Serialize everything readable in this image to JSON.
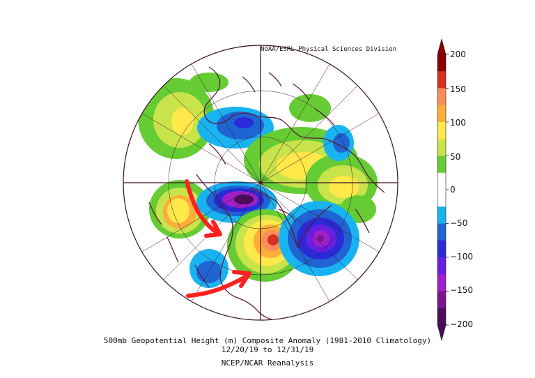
{
  "credit": "NOAA/ESRL Physical Sciences Division",
  "caption": {
    "title": "500mb Geopotential Height (m) Composite Anomaly (1981-2010 Climatology)",
    "dates": "12/20/19   to 12/31/19",
    "source": "NCEP/NCAR Reanalysis"
  },
  "colorbar": {
    "ticks": [
      "200",
      "150",
      "100",
      "50",
      "0",
      "−50",
      "−100",
      "−150",
      "−200"
    ],
    "colors": [
      "#8b0000",
      "#d7301f",
      "#fc8d59",
      "#fdae3a",
      "#fee84a",
      "#c9e34a",
      "#66cc33",
      "#ffffff",
      "#ffffff",
      "#19b4f0",
      "#1e64d2",
      "#2a2ad8",
      "#6a1fe0",
      "#a020c8",
      "#7b1690",
      "#4b0d5a"
    ]
  },
  "annotations": {
    "arrow_color": "#ff2020",
    "arrow_count": 2
  },
  "colors": {
    "coastline": "#5a1c3a",
    "grid": "#3a0f2a"
  }
}
